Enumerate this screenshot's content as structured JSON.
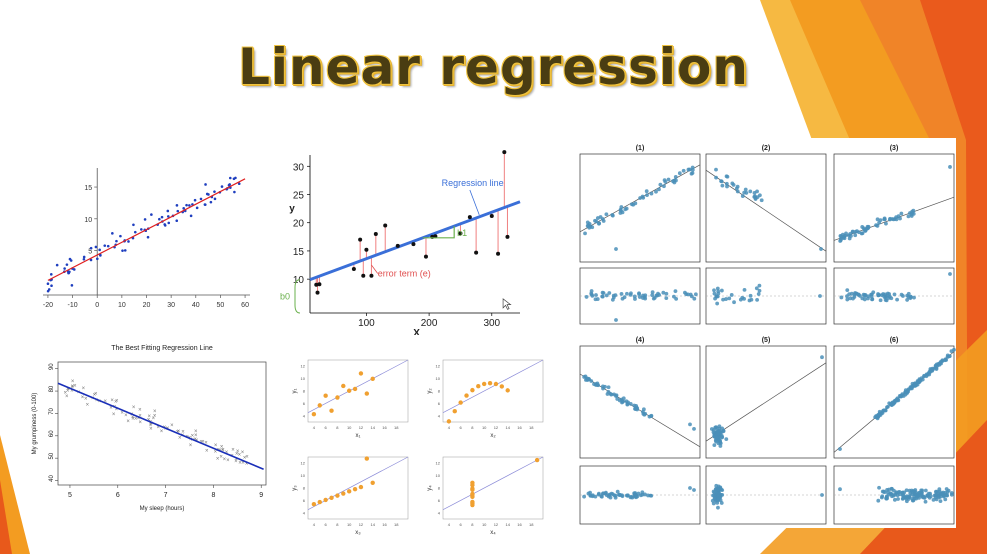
{
  "slide": {
    "title": "Linear regression",
    "colors": {
      "orange": "#f39c21",
      "dark_orange": "#e8591b",
      "title_text": "#4a3d12",
      "title_outline": "#f0c440"
    }
  },
  "fig1": {
    "chart_data": {
      "type": "scatter",
      "xticks": [
        "-20",
        "-10",
        "0",
        "10",
        "20",
        "30",
        "40",
        "50",
        "60"
      ],
      "yticks": [
        "5",
        "10",
        "15"
      ],
      "xlim": [
        -22,
        62
      ],
      "ylim": [
        -2,
        18
      ],
      "line": {
        "slope": 0.2,
        "intercept": 4.3
      },
      "point_color": "#1f3fbf",
      "line_color": "#e02020"
    }
  },
  "fig2": {
    "chart_data": {
      "type": "scatter",
      "xlabel": "X",
      "ylabel": "y",
      "xticks": [
        "100",
        "200",
        "300"
      ],
      "yticks": [
        "10",
        "15",
        "20",
        "25",
        "30"
      ],
      "xlim": [
        10,
        345
      ],
      "ylim": [
        4,
        32
      ],
      "line": {
        "slope": 0.0412,
        "intercept": 9.5
      },
      "annotations": {
        "regression_line": "Regression line",
        "error_term": "error term (e)",
        "b1": "b1",
        "b0": "b0"
      },
      "points": [
        [
          20,
          9
        ],
        [
          22,
          7.6
        ],
        [
          25,
          9.1
        ],
        [
          80,
          11.8
        ],
        [
          90,
          17
        ],
        [
          95,
          10.6
        ],
        [
          100,
          15.2
        ],
        [
          108,
          10.6
        ],
        [
          115,
          18
        ],
        [
          130,
          19.5
        ],
        [
          150,
          15.9
        ],
        [
          175,
          16.2
        ],
        [
          195,
          14
        ],
        [
          205,
          17.5
        ],
        [
          210,
          17.6
        ],
        [
          250,
          18.1
        ],
        [
          265,
          21
        ],
        [
          275,
          14.7
        ],
        [
          300,
          21.2
        ],
        [
          310,
          14.5
        ],
        [
          320,
          32.5
        ],
        [
          325,
          17.5
        ]
      ],
      "line_color": "#3a6fd8",
      "error_color": "#f08080",
      "b_color": "#6ab04c"
    }
  },
  "fig3": {
    "chart_data": {
      "type": "scatter",
      "title": "The Best Fitting Regression Line",
      "xlabel": "My sleep (hours)",
      "ylabel": "My grumpiness (0-100)",
      "xticks": [
        "5",
        "6",
        "7",
        "8",
        "9"
      ],
      "yticks": [
        "40",
        "50",
        "60",
        "70",
        "80",
        "90"
      ],
      "xlim": [
        4.75,
        9.1
      ],
      "ylim": [
        38,
        93
      ],
      "line": {
        "slope": -8.94,
        "intercept": 125.96
      },
      "line_color": "#1a2fb8",
      "point_color": "#777777"
    }
  },
  "fig4": {
    "chart_data": [
      {
        "type": "scatter",
        "xlabel": "x₁",
        "ylabel": "y₁",
        "x": [
          10,
          8,
          13,
          9,
          11,
          14,
          6,
          4,
          12,
          7,
          5
        ],
        "y": [
          8.04,
          6.95,
          7.58,
          8.81,
          8.33,
          9.96,
          7.24,
          4.26,
          10.84,
          4.82,
          5.68
        ]
      },
      {
        "type": "scatter",
        "xlabel": "x₂",
        "ylabel": "y₂",
        "x": [
          10,
          8,
          13,
          9,
          11,
          14,
          6,
          4,
          12,
          7,
          5
        ],
        "y": [
          9.14,
          8.14,
          8.74,
          8.77,
          9.26,
          8.1,
          6.13,
          3.1,
          9.13,
          7.26,
          4.74
        ]
      },
      {
        "type": "scatter",
        "xlabel": "x₃",
        "ylabel": "y₃",
        "x": [
          10,
          8,
          13,
          9,
          11,
          14,
          6,
          4,
          12,
          7,
          5
        ],
        "y": [
          7.46,
          6.77,
          12.74,
          7.11,
          7.81,
          8.84,
          6.08,
          5.39,
          8.15,
          6.42,
          5.73
        ]
      },
      {
        "type": "scatter",
        "xlabel": "x₄",
        "ylabel": "y₄",
        "x": [
          8,
          8,
          8,
          8,
          8,
          8,
          8,
          19,
          8,
          8,
          8
        ],
        "y": [
          6.58,
          5.76,
          7.71,
          8.84,
          8.47,
          7.04,
          5.25,
          12.5,
          5.56,
          7.91,
          6.89
        ]
      }
    ],
    "xticks": [
      "4",
      "6",
      "8",
      "10",
      "12",
      "14",
      "16",
      "18"
    ],
    "yticks": [
      "4",
      "6",
      "8",
      "10",
      "12"
    ],
    "xlim": [
      3,
      20
    ],
    "ylim": [
      3,
      13
    ],
    "line": {
      "slope": 0.5,
      "intercept": 3
    },
    "point_color": "#f0a030",
    "line_color": "#8c8cd8"
  },
  "fig5": {
    "chart_data": [
      {
        "type": "scatter",
        "title": "(1)",
        "fit": "positive, linear"
      },
      {
        "type": "scatter",
        "title": "(2)",
        "fit": "negative, with high-leverage outlier"
      },
      {
        "type": "scatter",
        "title": "(3)",
        "fit": "positive, with outlier"
      },
      {
        "type": "scatter",
        "title": "(4)",
        "fit": "negative, with outliers"
      },
      {
        "type": "scatter",
        "title": "(5)",
        "fit": "cluster with single high-leverage point"
      },
      {
        "type": "scatter",
        "title": "(6)",
        "fit": "strong positive linear"
      }
    ],
    "point_color": "#4a8fb8"
  }
}
